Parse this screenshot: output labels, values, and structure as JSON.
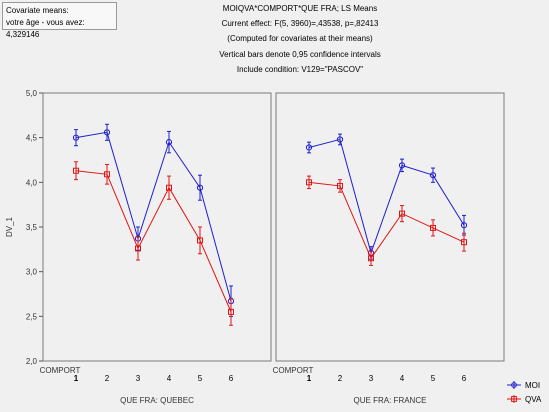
{
  "covariate_box": {
    "title": "Covariate means:",
    "line": "votre âge - vous avez: 4,329146"
  },
  "header": {
    "line1": "MOIQVA*COMPORT*QUE FRA; LS Means",
    "line2": "Current effect: F(5, 3960)=,43538, p=,82413",
    "line3": "(Computed for covariates at their means)",
    "line4": "Vertical bars denote 0,95 confidence intervals",
    "line5": "Include condition: V129=\"PASCOV\""
  },
  "colors": {
    "moi": "#1f1fd0",
    "qva": "#e01515",
    "panel_border": "#7a7a7a"
  },
  "chart_data": [
    {
      "type": "line",
      "panel_label": "QUE FRA: QUEBEC",
      "x_axis_label": "COMPORT",
      "ylabel": "DV_1",
      "categories": [
        "1",
        "2",
        "3",
        "4",
        "5",
        "6"
      ],
      "y_ticks": [
        "2,0",
        "2,5",
        "3,0",
        "3,5",
        "4,0",
        "4,5",
        "5,0"
      ],
      "ylim": [
        2.0,
        5.0
      ],
      "series": [
        {
          "name": "MOI",
          "values": [
            4.5,
            4.56,
            3.37,
            4.45,
            3.94,
            2.67
          ],
          "ci_low": [
            4.41,
            4.47,
            3.24,
            4.33,
            3.8,
            2.5
          ],
          "ci_high": [
            4.59,
            4.65,
            3.5,
            4.57,
            4.08,
            2.84
          ]
        },
        {
          "name": "QVA",
          "values": [
            4.13,
            4.09,
            3.26,
            3.94,
            3.35,
            2.55
          ],
          "ci_low": [
            4.03,
            3.98,
            3.13,
            3.81,
            3.2,
            2.4
          ],
          "ci_high": [
            4.23,
            4.2,
            3.39,
            4.07,
            3.5,
            2.7
          ]
        }
      ]
    },
    {
      "type": "line",
      "panel_label": "QUE FRA: FRANCE",
      "x_axis_label": "COMPORT",
      "categories": [
        "1",
        "2",
        "3",
        "4",
        "5",
        "6"
      ],
      "ylim": [
        2.0,
        5.0
      ],
      "series": [
        {
          "name": "MOI",
          "values": [
            4.39,
            4.48,
            3.21,
            4.19,
            4.08,
            3.52
          ],
          "ci_low": [
            4.33,
            4.42,
            3.14,
            4.12,
            4.0,
            3.41
          ],
          "ci_high": [
            4.45,
            4.54,
            3.28,
            4.26,
            4.16,
            3.63
          ]
        },
        {
          "name": "QVA",
          "values": [
            4.0,
            3.96,
            3.15,
            3.65,
            3.49,
            3.33
          ],
          "ci_low": [
            3.93,
            3.89,
            3.07,
            3.56,
            3.4,
            3.23
          ],
          "ci_high": [
            4.07,
            4.03,
            3.23,
            3.74,
            3.58,
            3.43
          ]
        }
      ]
    }
  ],
  "legend": {
    "items": [
      "MOI",
      "QVA"
    ],
    "placement": "bottom-right"
  }
}
